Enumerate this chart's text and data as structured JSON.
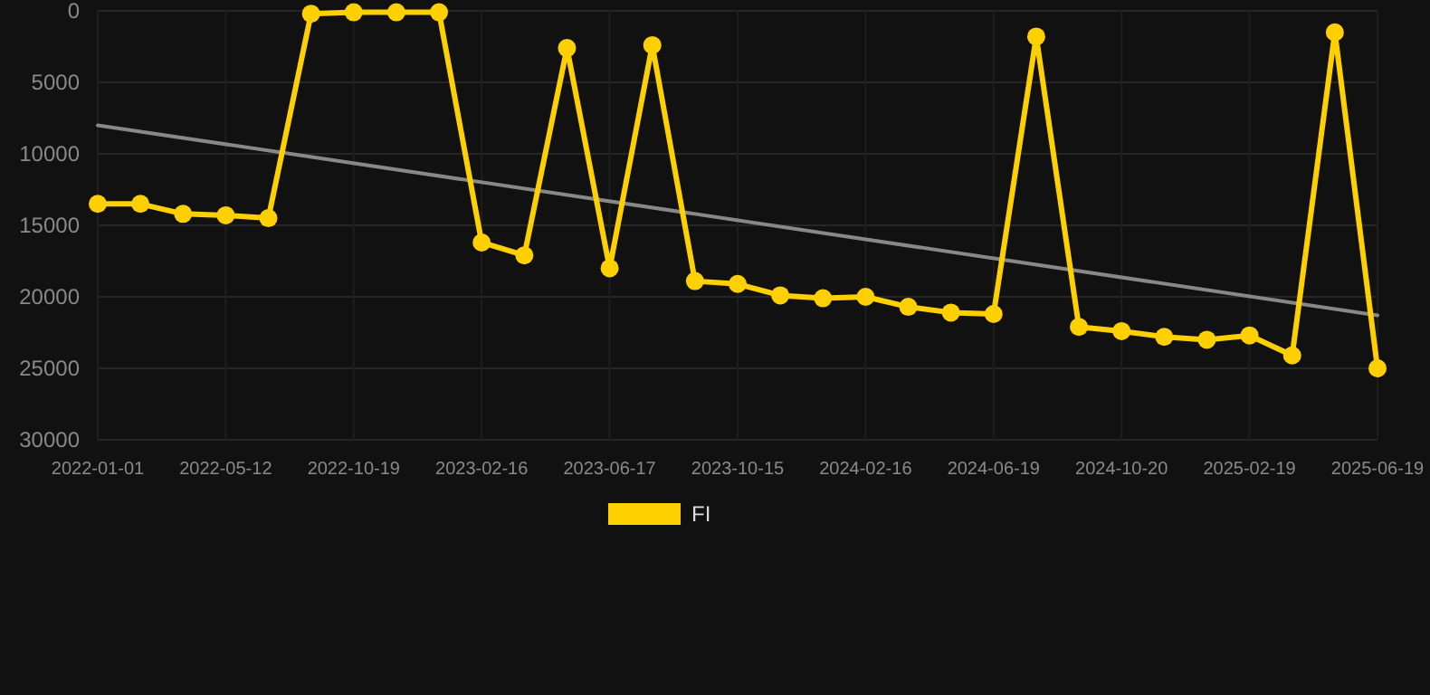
{
  "chart_data": {
    "type": "line",
    "categories": [
      "2022-01-01",
      null,
      null,
      "2022-05-12",
      null,
      null,
      "2022-10-19",
      null,
      null,
      "2023-02-16",
      null,
      null,
      "2023-06-17",
      null,
      null,
      "2023-10-15",
      null,
      null,
      "2024-02-16",
      null,
      null,
      "2024-06-19",
      null,
      null,
      "2024-10-20",
      null,
      null,
      "2025-02-19",
      null,
      null,
      "2025-06-19"
    ],
    "series": [
      {
        "name": "FI",
        "color": "#ffd000",
        "marker": "circle",
        "values": [
          13500,
          13500,
          14200,
          14300,
          14500,
          200,
          100,
          100,
          100,
          16200,
          17100,
          2600,
          18000,
          2400,
          18900,
          19100,
          19900,
          20100,
          20000,
          20700,
          21100,
          21200,
          1800,
          22100,
          22400,
          22800,
          23000,
          22700,
          24100,
          1500,
          25000
        ]
      },
      {
        "color": "#888888",
        "marker": "none",
        "values": [
          8000,
          null,
          null,
          null,
          null,
          null,
          null,
          null,
          null,
          null,
          null,
          null,
          null,
          null,
          null,
          null,
          null,
          null,
          null,
          null,
          null,
          null,
          null,
          null,
          null,
          null,
          null,
          null,
          null,
          null,
          21300
        ]
      }
    ],
    "ylim": [
      30000,
      0
    ],
    "yticks": [
      0,
      5000,
      10000,
      15000,
      20000,
      25000,
      30000
    ],
    "grid": true,
    "legend": "bottom"
  }
}
